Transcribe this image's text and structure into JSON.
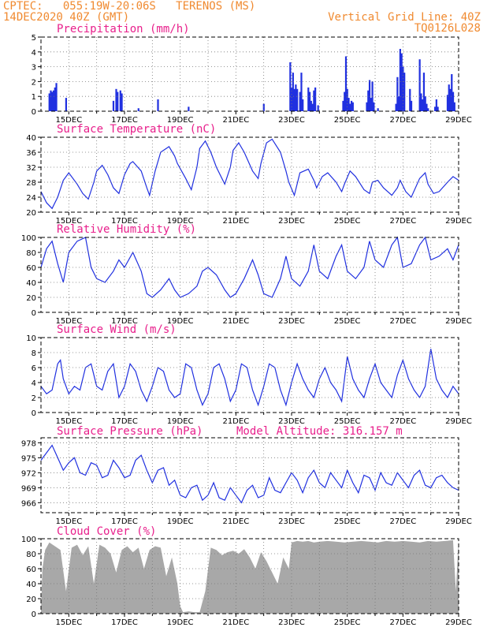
{
  "header": {
    "line1": "CPTEC:   055:19W-20:06S   TERENOS (MS)",
    "line2": "14DEC2020 40Z (GMT)",
    "grid_note": "Vertical Grid Line: 40Z",
    "code": "TQ0126L028"
  },
  "colors": {
    "header": "#f08a30",
    "title": "#e8208c",
    "line": "#2030e0",
    "cloud": "#a8a8a8"
  },
  "chart_data": [
    {
      "id": "precip",
      "type": "bar",
      "title": "Precipitation (mm/h)",
      "ylim": [
        0,
        5
      ],
      "yticks": [
        0,
        1,
        2,
        3,
        4,
        5
      ],
      "xlim": [
        14,
        29
      ],
      "xticks": [
        "15DEC",
        "17DEC",
        "19DEC",
        "21DEC",
        "23DEC",
        "25DEC",
        "27DEC",
        "29DEC"
      ],
      "x": [
        14.3,
        14.35,
        14.4,
        14.45,
        14.5,
        14.55,
        14.9,
        16.6,
        16.7,
        16.75,
        16.85,
        16.9,
        17.5,
        18.2,
        19.3,
        22.0,
        22.95,
        23.0,
        23.05,
        23.1,
        23.15,
        23.2,
        23.3,
        23.35,
        23.4,
        23.6,
        23.65,
        23.7,
        23.75,
        23.8,
        23.85,
        23.95,
        24.85,
        24.9,
        24.95,
        25.0,
        25.05,
        25.1,
        25.15,
        25.2,
        25.7,
        25.75,
        25.8,
        25.85,
        25.9,
        25.95,
        26.1,
        26.75,
        26.8,
        26.85,
        26.9,
        26.95,
        27.0,
        27.05,
        27.25,
        27.3,
        27.6,
        27.65,
        27.7,
        27.75,
        27.8,
        27.85,
        27.9,
        28.15,
        28.2,
        28.25,
        28.6,
        28.65,
        28.7,
        28.75,
        28.8,
        28.85
      ],
      "values": [
        1.2,
        1.4,
        1.3,
        1.4,
        1.6,
        1.9,
        0.9,
        0.7,
        1.5,
        1.3,
        1.4,
        1.2,
        0.2,
        0.8,
        0.3,
        0.5,
        3.3,
        1.6,
        2.6,
        1.5,
        1.8,
        1.5,
        1.3,
        2.6,
        0.8,
        1.6,
        1.3,
        0.7,
        0.5,
        1.4,
        1.6,
        0.4,
        0.7,
        1.3,
        3.7,
        1.5,
        0.9,
        0.5,
        0.7,
        0.6,
        0.6,
        1.4,
        2.1,
        0.9,
        2.0,
        0.6,
        0.2,
        0.5,
        2.3,
        1.0,
        4.2,
        3.9,
        3.0,
        2.6,
        1.5,
        0.7,
        3.5,
        1.2,
        0.8,
        2.6,
        1.0,
        0.5,
        0.2,
        0.3,
        0.8,
        0.3,
        1.1,
        1.8,
        1.5,
        2.5,
        1.3,
        0.6
      ]
    },
    {
      "id": "temp",
      "type": "line",
      "title": "Surface Temperature (nC)",
      "ylim": [
        20,
        40
      ],
      "yticks": [
        20,
        24,
        28,
        32,
        36,
        40
      ],
      "xlim": [
        14,
        29
      ],
      "xticks": [
        "15DEC",
        "17DEC",
        "19DEC",
        "21DEC",
        "23DEC",
        "25DEC",
        "27DEC",
        "29DEC"
      ],
      "x": [
        14.0,
        14.2,
        14.4,
        14.6,
        14.8,
        15.0,
        15.3,
        15.5,
        15.7,
        15.9,
        16.0,
        16.2,
        16.4,
        16.6,
        16.8,
        17.0,
        17.2,
        17.3,
        17.6,
        17.8,
        17.9,
        18.1,
        18.3,
        18.6,
        18.8,
        18.9,
        19.2,
        19.4,
        19.6,
        19.7,
        19.9,
        20.1,
        20.3,
        20.6,
        20.8,
        20.9,
        21.1,
        21.3,
        21.6,
        21.8,
        21.9,
        22.1,
        22.3,
        22.6,
        22.8,
        22.9,
        23.1,
        23.3,
        23.6,
        23.8,
        23.9,
        24.1,
        24.3,
        24.6,
        24.8,
        24.9,
        25.1,
        25.3,
        25.6,
        25.8,
        25.9,
        26.1,
        26.3,
        26.6,
        26.8,
        26.9,
        27.1,
        27.3,
        27.6,
        27.8,
        27.9,
        28.1,
        28.3,
        28.6,
        28.8,
        28.9,
        29.0
      ],
      "values": [
        25.5,
        22.5,
        21.0,
        24.0,
        28.5,
        30.5,
        27.5,
        25.0,
        23.5,
        28.0,
        31.0,
        32.5,
        30.0,
        26.5,
        25.0,
        30.0,
        33.0,
        33.5,
        31.0,
        26.5,
        24.5,
        31.0,
        36.0,
        37.5,
        35.0,
        33.0,
        29.0,
        26.0,
        32.0,
        37.0,
        39.0,
        36.0,
        32.0,
        27.5,
        32.0,
        36.5,
        38.5,
        36.0,
        31.0,
        29.0,
        33.0,
        38.5,
        39.5,
        36.0,
        31.0,
        28.0,
        24.5,
        30.5,
        31.5,
        28.5,
        26.5,
        29.5,
        30.5,
        28.0,
        25.5,
        27.5,
        31.0,
        29.5,
        26.0,
        25.0,
        28.0,
        28.5,
        26.5,
        24.5,
        26.5,
        28.5,
        25.5,
        24.0,
        29.0,
        30.5,
        27.5,
        25.0,
        25.5,
        28.0,
        29.5,
        29.0,
        28.5
      ]
    },
    {
      "id": "rh",
      "type": "line",
      "title": "Relative Humidity (%)",
      "ylim": [
        0,
        100
      ],
      "yticks": [
        0,
        20,
        40,
        60,
        80,
        100
      ],
      "xlim": [
        14,
        29
      ],
      "xticks": [
        "15DEC",
        "17DEC",
        "19DEC",
        "21DEC",
        "23DEC",
        "25DEC",
        "27DEC",
        "29DEC"
      ],
      "x": [
        14.0,
        14.2,
        14.4,
        14.6,
        14.8,
        15.0,
        15.3,
        15.6,
        15.8,
        16.0,
        16.3,
        16.6,
        16.8,
        17.0,
        17.3,
        17.6,
        17.8,
        18.0,
        18.3,
        18.6,
        18.8,
        19.0,
        19.3,
        19.6,
        19.8,
        20.0,
        20.3,
        20.6,
        20.8,
        21.0,
        21.3,
        21.6,
        21.8,
        22.0,
        22.3,
        22.6,
        22.8,
        23.0,
        23.3,
        23.6,
        23.8,
        24.0,
        24.3,
        24.6,
        24.8,
        25.0,
        25.3,
        25.6,
        25.8,
        26.0,
        26.3,
        26.6,
        26.8,
        27.0,
        27.3,
        27.6,
        27.8,
        28.0,
        28.3,
        28.6,
        28.8,
        29.0
      ],
      "values": [
        60,
        85,
        95,
        65,
        40,
        80,
        95,
        100,
        60,
        45,
        40,
        55,
        70,
        60,
        80,
        55,
        25,
        20,
        30,
        45,
        30,
        20,
        25,
        35,
        55,
        60,
        50,
        30,
        20,
        25,
        45,
        70,
        50,
        25,
        20,
        45,
        75,
        45,
        35,
        55,
        90,
        55,
        45,
        75,
        90,
        55,
        45,
        60,
        95,
        70,
        60,
        90,
        100,
        60,
        65,
        90,
        100,
        70,
        75,
        85,
        70,
        90
      ]
    },
    {
      "id": "wind",
      "type": "line",
      "title": "Surface Wind (m/s)",
      "ylim": [
        0,
        10
      ],
      "yticks": [
        0,
        2,
        4,
        6,
        8,
        10
      ],
      "xlim": [
        14,
        29
      ],
      "xticks": [
        "15DEC",
        "17DEC",
        "19DEC",
        "21DEC",
        "23DEC",
        "25DEC",
        "27DEC",
        "29DEC"
      ],
      "x": [
        14.0,
        14.2,
        14.4,
        14.6,
        14.7,
        14.8,
        15.0,
        15.2,
        15.4,
        15.6,
        15.8,
        16.0,
        16.2,
        16.4,
        16.6,
        16.8,
        17.0,
        17.2,
        17.4,
        17.6,
        17.8,
        18.0,
        18.2,
        18.4,
        18.6,
        18.8,
        19.0,
        19.2,
        19.4,
        19.6,
        19.8,
        20.0,
        20.2,
        20.4,
        20.6,
        20.8,
        21.0,
        21.2,
        21.4,
        21.6,
        21.8,
        22.0,
        22.2,
        22.4,
        22.6,
        22.8,
        23.0,
        23.2,
        23.4,
        23.6,
        23.8,
        24.0,
        24.2,
        24.4,
        24.6,
        24.8,
        25.0,
        25.2,
        25.4,
        25.6,
        25.8,
        26.0,
        26.2,
        26.4,
        26.6,
        26.8,
        27.0,
        27.2,
        27.4,
        27.6,
        27.8,
        28.0,
        28.2,
        28.4,
        28.6,
        28.8,
        29.0
      ],
      "values": [
        3.5,
        2.5,
        3.0,
        6.5,
        7.0,
        4.5,
        2.5,
        3.5,
        3.0,
        6.0,
        6.5,
        3.5,
        3.0,
        5.5,
        6.5,
        2.0,
        3.5,
        6.5,
        5.5,
        3.0,
        1.5,
        3.5,
        6.0,
        5.5,
        3.0,
        2.0,
        2.5,
        6.5,
        6.0,
        3.0,
        1.0,
        2.5,
        6.0,
        6.5,
        4.5,
        1.5,
        3.0,
        6.5,
        6.0,
        3.0,
        1.0,
        3.5,
        6.5,
        6.0,
        3.0,
        1.0,
        4.0,
        6.5,
        4.5,
        3.0,
        2.0,
        4.5,
        6.0,
        4.0,
        3.0,
        1.5,
        7.5,
        4.5,
        3.0,
        2.0,
        4.5,
        6.5,
        4.0,
        3.0,
        2.0,
        5.0,
        7.0,
        4.5,
        3.0,
        2.0,
        3.5,
        8.5,
        4.5,
        3.0,
        2.0,
        3.5,
        2.5
      ]
    },
    {
      "id": "pressure",
      "type": "line",
      "title": "Surface Pressure (hPa)",
      "annotation": "Model Altitude: 316.157 m",
      "ylim": [
        964,
        979
      ],
      "yticks": [
        966,
        969,
        972,
        975,
        978
      ],
      "xlim": [
        14,
        29
      ],
      "xticks": [
        "15DEC",
        "17DEC",
        "19DEC",
        "21DEC",
        "23DEC",
        "25DEC",
        "27DEC",
        "29DEC"
      ],
      "x": [
        14.0,
        14.2,
        14.4,
        14.6,
        14.8,
        15.0,
        15.2,
        15.4,
        15.6,
        15.8,
        16.0,
        16.2,
        16.4,
        16.6,
        16.8,
        17.0,
        17.2,
        17.4,
        17.6,
        17.8,
        18.0,
        18.2,
        18.4,
        18.6,
        18.8,
        19.0,
        19.2,
        19.4,
        19.6,
        19.8,
        20.0,
        20.2,
        20.4,
        20.6,
        20.8,
        21.0,
        21.2,
        21.4,
        21.6,
        21.8,
        22.0,
        22.2,
        22.4,
        22.6,
        22.8,
        23.0,
        23.2,
        23.4,
        23.6,
        23.8,
        24.0,
        24.2,
        24.4,
        24.6,
        24.8,
        25.0,
        25.2,
        25.4,
        25.6,
        25.8,
        26.0,
        26.2,
        26.4,
        26.6,
        26.8,
        27.0,
        27.2,
        27.4,
        27.6,
        27.8,
        28.0,
        28.2,
        28.4,
        28.6,
        28.8,
        29.0
      ],
      "values": [
        974.5,
        976.0,
        977.5,
        975.0,
        972.5,
        974.0,
        975.0,
        972.0,
        971.5,
        974.0,
        973.5,
        971.0,
        971.5,
        974.5,
        973.0,
        971.0,
        971.5,
        974.5,
        975.5,
        972.5,
        970.0,
        972.5,
        973.0,
        969.5,
        970.5,
        967.5,
        967.0,
        969.0,
        969.5,
        966.5,
        967.5,
        970.0,
        967.0,
        966.5,
        969.0,
        967.5,
        966.0,
        968.5,
        969.5,
        967.0,
        967.5,
        971.0,
        968.5,
        968.0,
        970.0,
        972.0,
        970.5,
        968.0,
        971.0,
        972.5,
        970.0,
        969.0,
        972.0,
        970.5,
        969.0,
        972.5,
        970.0,
        968.0,
        971.5,
        971.0,
        968.5,
        972.0,
        970.0,
        969.5,
        972.0,
        970.5,
        969.0,
        971.5,
        972.5,
        969.5,
        969.0,
        971.0,
        971.5,
        970.0,
        969.0,
        968.5
      ]
    },
    {
      "id": "cloud",
      "type": "area",
      "title": "Cloud Cover (%)",
      "ylim": [
        0,
        100
      ],
      "yticks": [
        0,
        20,
        40,
        60,
        80,
        100
      ],
      "xlim": [
        14,
        29
      ],
      "xticks": [
        "15DEC",
        "17DEC",
        "19DEC",
        "21DEC",
        "23DEC",
        "25DEC",
        "27DEC",
        "29DEC"
      ],
      "x": [
        14.0,
        14.05,
        14.15,
        14.3,
        14.5,
        14.7,
        14.9,
        15.1,
        15.3,
        15.5,
        15.7,
        15.9,
        16.1,
        16.3,
        16.5,
        16.7,
        16.9,
        17.1,
        17.3,
        17.5,
        17.7,
        17.9,
        18.1,
        18.3,
        18.5,
        18.7,
        18.9,
        19.0,
        19.1,
        19.3,
        19.5,
        19.7,
        19.9,
        20.1,
        20.3,
        20.5,
        20.7,
        20.9,
        21.1,
        21.3,
        21.5,
        21.7,
        21.9,
        22.1,
        22.3,
        22.5,
        22.7,
        22.9,
        23.0,
        23.2,
        23.4,
        23.6,
        23.8,
        24.0,
        24.3,
        24.6,
        24.9,
        25.2,
        25.5,
        25.8,
        26.1,
        26.4,
        26.7,
        27.0,
        27.3,
        27.6,
        27.9,
        28.2,
        28.5,
        28.8,
        28.9,
        29.0
      ],
      "values": [
        5,
        60,
        85,
        95,
        90,
        85,
        30,
        88,
        92,
        78,
        90,
        40,
        92,
        88,
        80,
        55,
        85,
        90,
        82,
        88,
        60,
        85,
        90,
        88,
        50,
        75,
        40,
        10,
        2,
        3,
        2,
        2,
        30,
        88,
        85,
        78,
        82,
        84,
        80,
        86,
        75,
        60,
        82,
        70,
        55,
        40,
        75,
        60,
        95,
        97,
        96,
        97,
        95,
        96,
        97,
        96,
        95,
        96,
        97,
        96,
        95,
        97,
        96,
        97,
        96,
        95,
        97,
        96,
        97,
        98,
        30,
        98
      ]
    }
  ]
}
